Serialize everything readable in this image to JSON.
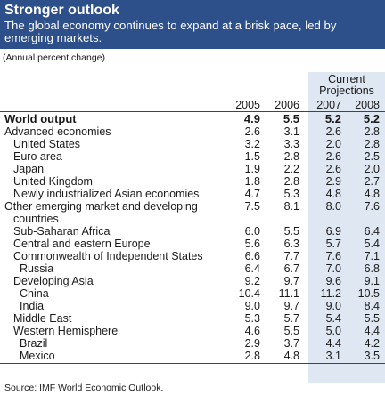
{
  "title": "Stronger outlook",
  "subtitle": "The global economy continues to expand at a brisk pace, led by emerging markets.",
  "note": "(Annual percent change)",
  "projections_label_1": "Current",
  "projections_label_2": "Projections",
  "years": [
    "2005",
    "2006",
    "2007",
    "2008"
  ],
  "rows": [
    {
      "label": "World output",
      "indent": 0,
      "bold": true,
      "values": [
        "4.9",
        "5.5",
        "5.2",
        "5.2"
      ]
    },
    {
      "label": "Advanced economies",
      "indent": 0,
      "values": [
        "2.6",
        "3.1",
        "2.6",
        "2.8"
      ]
    },
    {
      "label": "United States",
      "indent": 1,
      "values": [
        "3.2",
        "3.3",
        "2.0",
        "2.8"
      ]
    },
    {
      "label": "Euro area",
      "indent": 1,
      "values": [
        "1.5",
        "2.8",
        "2.6",
        "2.5"
      ]
    },
    {
      "label": "Japan",
      "indent": 1,
      "values": [
        "1.9",
        "2.2",
        "2.6",
        "2.0"
      ]
    },
    {
      "label": "United Kingdom",
      "indent": 1,
      "values": [
        "1.8",
        "2.8",
        "2.9",
        "2.7"
      ]
    },
    {
      "label": "Newly industrialized Asian economies",
      "indent": 1,
      "values": [
        "4.7",
        "5.3",
        "4.8",
        "4.8"
      ]
    },
    {
      "label": "Other emerging market and developing",
      "label2": "countries",
      "indent": 0,
      "values": [
        "7.5",
        "8.1",
        "8.0",
        "7.6"
      ]
    },
    {
      "label": "Sub-Saharan Africa",
      "indent": 1,
      "values": [
        "6.0",
        "5.5",
        "6.9",
        "6.4"
      ]
    },
    {
      "label": "Central and eastern Europe",
      "indent": 1,
      "values": [
        "5.6",
        "6.3",
        "5.7",
        "5.4"
      ]
    },
    {
      "label": "Commonwealth of Independent States",
      "indent": 1,
      "values": [
        "6.6",
        "7.7",
        "7.6",
        "7.1"
      ]
    },
    {
      "label": "Russia",
      "indent": 2,
      "values": [
        "6.4",
        "6.7",
        "7.0",
        "6.8"
      ]
    },
    {
      "label": "Developing Asia",
      "indent": 1,
      "values": [
        "9.2",
        "9.7",
        "9.6",
        "9.1"
      ]
    },
    {
      "label": "China",
      "indent": 2,
      "values": [
        "10.4",
        "11.1",
        "11.2",
        "10.5"
      ]
    },
    {
      "label": "India",
      "indent": 2,
      "values": [
        "9.0",
        "9.7",
        "9.0",
        "8.4"
      ]
    },
    {
      "label": "Middle East",
      "indent": 1,
      "values": [
        "5.3",
        "5.7",
        "5.4",
        "5.5"
      ]
    },
    {
      "label": "Western Hemisphere",
      "indent": 1,
      "values": [
        "4.6",
        "5.5",
        "5.0",
        "4.4"
      ]
    },
    {
      "label": "Brazil",
      "indent": 2,
      "values": [
        "2.9",
        "3.7",
        "4.4",
        "4.2"
      ]
    },
    {
      "label": "Mexico",
      "indent": 2,
      "values": [
        "2.8",
        "4.8",
        "3.1",
        "3.5"
      ]
    }
  ],
  "source": "Source: IMF World Economic Outlook.",
  "colors": {
    "header_bg": "#2d4f8a",
    "projection_band": "#dfe7f2"
  }
}
